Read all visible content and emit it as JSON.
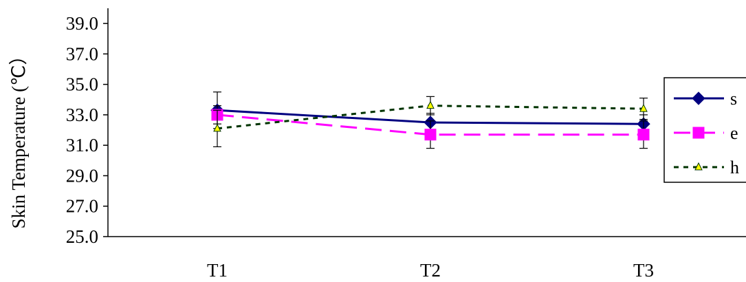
{
  "chart_data": {
    "type": "line",
    "categories": [
      "T1",
      "T2",
      "T3"
    ],
    "ylabel": "Skin Temperature (℃）",
    "ylim": [
      25.0,
      40.0
    ],
    "yticks": [
      "25.0",
      "27.0",
      "29.0",
      "31.0",
      "33.0",
      "35.0",
      "37.0",
      "39.0"
    ],
    "grid": false,
    "legend_position": "right",
    "series": [
      {
        "name": "s",
        "values": [
          33.3,
          32.5,
          32.4
        ],
        "errors": [
          1.2,
          0.6,
          0.6
        ],
        "color": "#000080",
        "marker": "diamond",
        "line_style": "solid"
      },
      {
        "name": "e",
        "values": [
          33.0,
          31.7,
          31.7
        ],
        "errors": [
          0.6,
          0.9,
          0.9
        ],
        "color": "#FF00FF",
        "marker": "square",
        "line_style": "dashed"
      },
      {
        "name": "h",
        "values": [
          32.1,
          33.6,
          33.4
        ],
        "errors": [
          1.2,
          0.6,
          0.7
        ],
        "color": "#003300",
        "marker_fill": "#FFFF00",
        "marker": "triangle",
        "line_style": "dotted"
      }
    ]
  }
}
